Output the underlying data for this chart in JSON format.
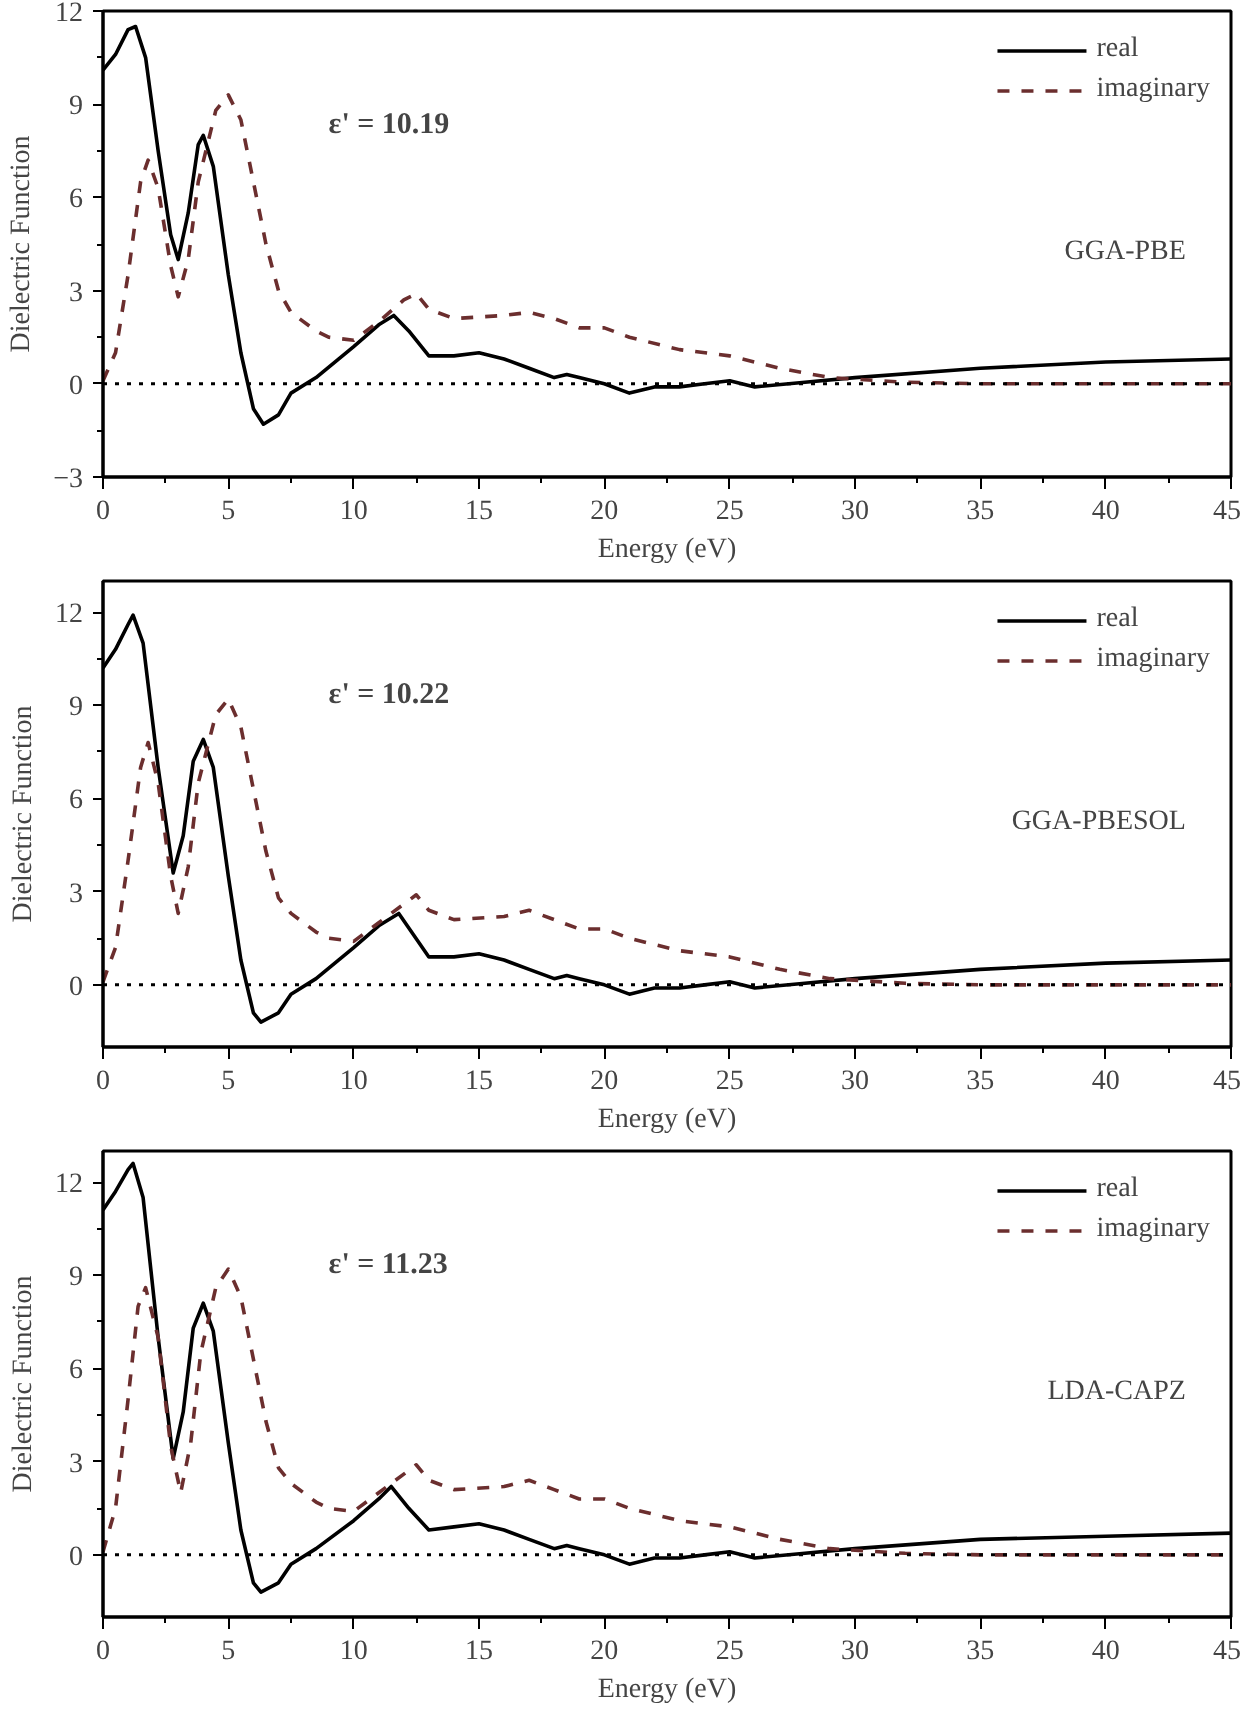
{
  "chart_data": [
    {
      "type": "line",
      "xlabel": "Energy (eV)",
      "ylabel": "Dielectric Function",
      "annotations": [
        "ε' = 10.19",
        "GGA-PBE"
      ],
      "xlim": [
        0,
        45
      ],
      "xticks": [
        0,
        5,
        10,
        15,
        20,
        25,
        30,
        35,
        40,
        45
      ],
      "ylim": [
        -3,
        12
      ],
      "yticks": [
        -3,
        0,
        3,
        6,
        9,
        12
      ],
      "legend": "top right",
      "grid": false,
      "ref_lines": [
        {
          "axis": "y",
          "value": 0,
          "line_style": "dotted",
          "color": "#000000"
        }
      ],
      "series": [
        {
          "name": "real",
          "color": "#000000",
          "line_style": "solid",
          "x": [
            0,
            0.5,
            1,
            1.3,
            1.7,
            2.2,
            2.7,
            3.0,
            3.4,
            3.8,
            4.0,
            4.4,
            5.0,
            5.5,
            6.0,
            6.4,
            7.0,
            7.5,
            8.5,
            10,
            11,
            11.6,
            12.2,
            13,
            14,
            15,
            16,
            17,
            18,
            18.5,
            19,
            20,
            21,
            22,
            23,
            24,
            25,
            26,
            28,
            30,
            35,
            40,
            45
          ],
          "values": [
            10.1,
            10.6,
            11.4,
            11.5,
            10.5,
            7.5,
            4.8,
            4.0,
            5.5,
            7.7,
            8.0,
            7.0,
            3.5,
            1.0,
            -0.8,
            -1.3,
            -1.0,
            -0.3,
            0.2,
            1.2,
            1.9,
            2.2,
            1.7,
            0.9,
            0.9,
            1.0,
            0.8,
            0.5,
            0.2,
            0.3,
            0.2,
            0.0,
            -0.3,
            -0.1,
            -0.1,
            0,
            0.1,
            -0.1,
            0.05,
            0.2,
            0.5,
            0.7,
            0.8
          ]
        },
        {
          "name": "imaginary",
          "color": "#6b2e2e",
          "line_style": "dashed",
          "x": [
            0,
            0.5,
            1,
            1.5,
            1.8,
            2.2,
            2.7,
            3.0,
            3.4,
            3.8,
            4.5,
            5,
            5.5,
            6,
            6.5,
            7,
            7.5,
            8.5,
            9,
            10,
            11,
            12,
            12.5,
            13,
            14,
            16,
            17,
            18,
            19,
            20,
            21,
            23,
            25,
            27,
            29,
            32,
            35,
            45
          ],
          "values": [
            0.1,
            1.0,
            3.5,
            6.5,
            7.2,
            6.3,
            3.8,
            2.8,
            4.0,
            6.5,
            8.8,
            9.3,
            8.5,
            6.5,
            4.5,
            3.0,
            2.3,
            1.7,
            1.5,
            1.4,
            2.0,
            2.7,
            2.9,
            2.4,
            2.1,
            2.2,
            2.3,
            2.1,
            1.8,
            1.8,
            1.5,
            1.1,
            0.9,
            0.5,
            0.2,
            0.05,
            0,
            0
          ]
        }
      ]
    },
    {
      "type": "line",
      "xlabel": "Energy (eV)",
      "ylabel": "Dielectric Function",
      "annotations": [
        "ε' = 10.22",
        "GGA-PBESOL"
      ],
      "xlim": [
        0,
        45
      ],
      "xticks": [
        0,
        5,
        10,
        15,
        20,
        25,
        30,
        35,
        40,
        45
      ],
      "ylim": [
        -2,
        13
      ],
      "yticks": [
        0,
        3,
        6,
        9,
        12
      ],
      "legend": "top right",
      "grid": false,
      "ref_lines": [
        {
          "axis": "y",
          "value": 0,
          "line_style": "dotted",
          "color": "#000000"
        }
      ],
      "series": [
        {
          "name": "real",
          "color": "#000000",
          "line_style": "solid",
          "x": [
            0,
            0.5,
            1,
            1.2,
            1.6,
            2.2,
            2.8,
            3.2,
            3.6,
            4.0,
            4.4,
            5.0,
            5.5,
            6.0,
            6.3,
            7.0,
            7.5,
            8.5,
            10,
            11,
            11.8,
            12.4,
            13,
            14,
            15,
            16,
            17,
            18,
            18.5,
            19,
            20,
            21,
            22,
            23,
            24,
            25,
            26,
            28,
            30,
            35,
            40,
            45
          ],
          "values": [
            10.2,
            10.8,
            11.6,
            11.9,
            11.0,
            7.0,
            3.6,
            4.8,
            7.2,
            7.9,
            7.0,
            3.5,
            0.8,
            -0.9,
            -1.2,
            -0.9,
            -0.3,
            0.2,
            1.2,
            1.9,
            2.3,
            1.6,
            0.9,
            0.9,
            1.0,
            0.8,
            0.5,
            0.2,
            0.3,
            0.2,
            0.0,
            -0.3,
            -0.1,
            -0.1,
            0,
            0.1,
            -0.1,
            0.05,
            0.2,
            0.5,
            0.7,
            0.8
          ]
        },
        {
          "name": "imaginary",
          "color": "#6b2e2e",
          "line_style": "dashed",
          "x": [
            0,
            0.5,
            1,
            1.5,
            1.8,
            2.2,
            2.7,
            3.0,
            3.4,
            3.8,
            4.5,
            5,
            5.5,
            6,
            6.5,
            7,
            7.5,
            8.5,
            9,
            10,
            11,
            12,
            12.5,
            13,
            14,
            16,
            17,
            18,
            19,
            20,
            21,
            23,
            25,
            27,
            29,
            32,
            35,
            45
          ],
          "values": [
            0.1,
            1.2,
            4.0,
            7.0,
            7.8,
            6.5,
            3.5,
            2.3,
            3.8,
            6.5,
            8.7,
            9.2,
            8.3,
            6.3,
            4.3,
            2.8,
            2.3,
            1.7,
            1.5,
            1.4,
            2.0,
            2.6,
            2.9,
            2.4,
            2.1,
            2.2,
            2.4,
            2.1,
            1.8,
            1.8,
            1.5,
            1.1,
            0.9,
            0.5,
            0.2,
            0.05,
            0,
            0
          ]
        }
      ]
    },
    {
      "type": "line",
      "xlabel": "Energy (eV)",
      "ylabel": "Dielectric Function",
      "annotations": [
        "ε' = 11.23",
        "LDA-CAPZ"
      ],
      "xlim": [
        0,
        45
      ],
      "xticks": [
        0,
        5,
        10,
        15,
        20,
        25,
        30,
        35,
        40,
        45
      ],
      "ylim": [
        -2,
        13
      ],
      "yticks": [
        0,
        3,
        6,
        9,
        12
      ],
      "legend": "top right",
      "grid": false,
      "ref_lines": [
        {
          "axis": "y",
          "value": 0,
          "line_style": "dotted",
          "color": "#000000"
        }
      ],
      "series": [
        {
          "name": "real",
          "color": "#000000",
          "line_style": "solid",
          "x": [
            0,
            0.5,
            1,
            1.2,
            1.6,
            2.2,
            2.8,
            3.2,
            3.6,
            4.0,
            4.4,
            5.0,
            5.5,
            6.0,
            6.3,
            7.0,
            7.5,
            8.5,
            10,
            11,
            11.5,
            12.2,
            13,
            14,
            15,
            16,
            17,
            18,
            18.5,
            19,
            20,
            21,
            22,
            23,
            24,
            25,
            26,
            28,
            30,
            35,
            40,
            45
          ],
          "values": [
            11.1,
            11.7,
            12.4,
            12.6,
            11.5,
            7.0,
            3.1,
            4.6,
            7.3,
            8.1,
            7.2,
            3.6,
            0.8,
            -0.9,
            -1.2,
            -0.9,
            -0.3,
            0.2,
            1.1,
            1.8,
            2.2,
            1.5,
            0.8,
            0.9,
            1.0,
            0.8,
            0.5,
            0.2,
            0.3,
            0.2,
            0.0,
            -0.3,
            -0.1,
            -0.1,
            0,
            0.1,
            -0.1,
            0.05,
            0.2,
            0.5,
            0.6,
            0.7
          ]
        },
        {
          "name": "imaginary",
          "color": "#6b2e2e",
          "line_style": "dashed",
          "x": [
            0,
            0.5,
            1,
            1.4,
            1.7,
            2.2,
            2.7,
            3.1,
            3.5,
            3.9,
            4.5,
            5,
            5.5,
            6,
            6.5,
            7,
            7.5,
            8.5,
            9,
            10,
            11,
            12,
            12.5,
            13,
            14,
            16,
            17,
            18,
            19,
            20,
            21,
            23,
            25,
            27,
            29,
            32,
            35,
            45
          ],
          "values": [
            0.1,
            1.5,
            5.0,
            8.0,
            8.6,
            7.0,
            3.5,
            2.0,
            3.6,
            6.5,
            8.6,
            9.2,
            8.3,
            6.3,
            4.3,
            2.8,
            2.3,
            1.7,
            1.5,
            1.4,
            2.0,
            2.6,
            2.9,
            2.4,
            2.1,
            2.2,
            2.4,
            2.1,
            1.8,
            1.8,
            1.5,
            1.1,
            0.9,
            0.5,
            0.2,
            0.05,
            0,
            0
          ]
        }
      ]
    }
  ]
}
